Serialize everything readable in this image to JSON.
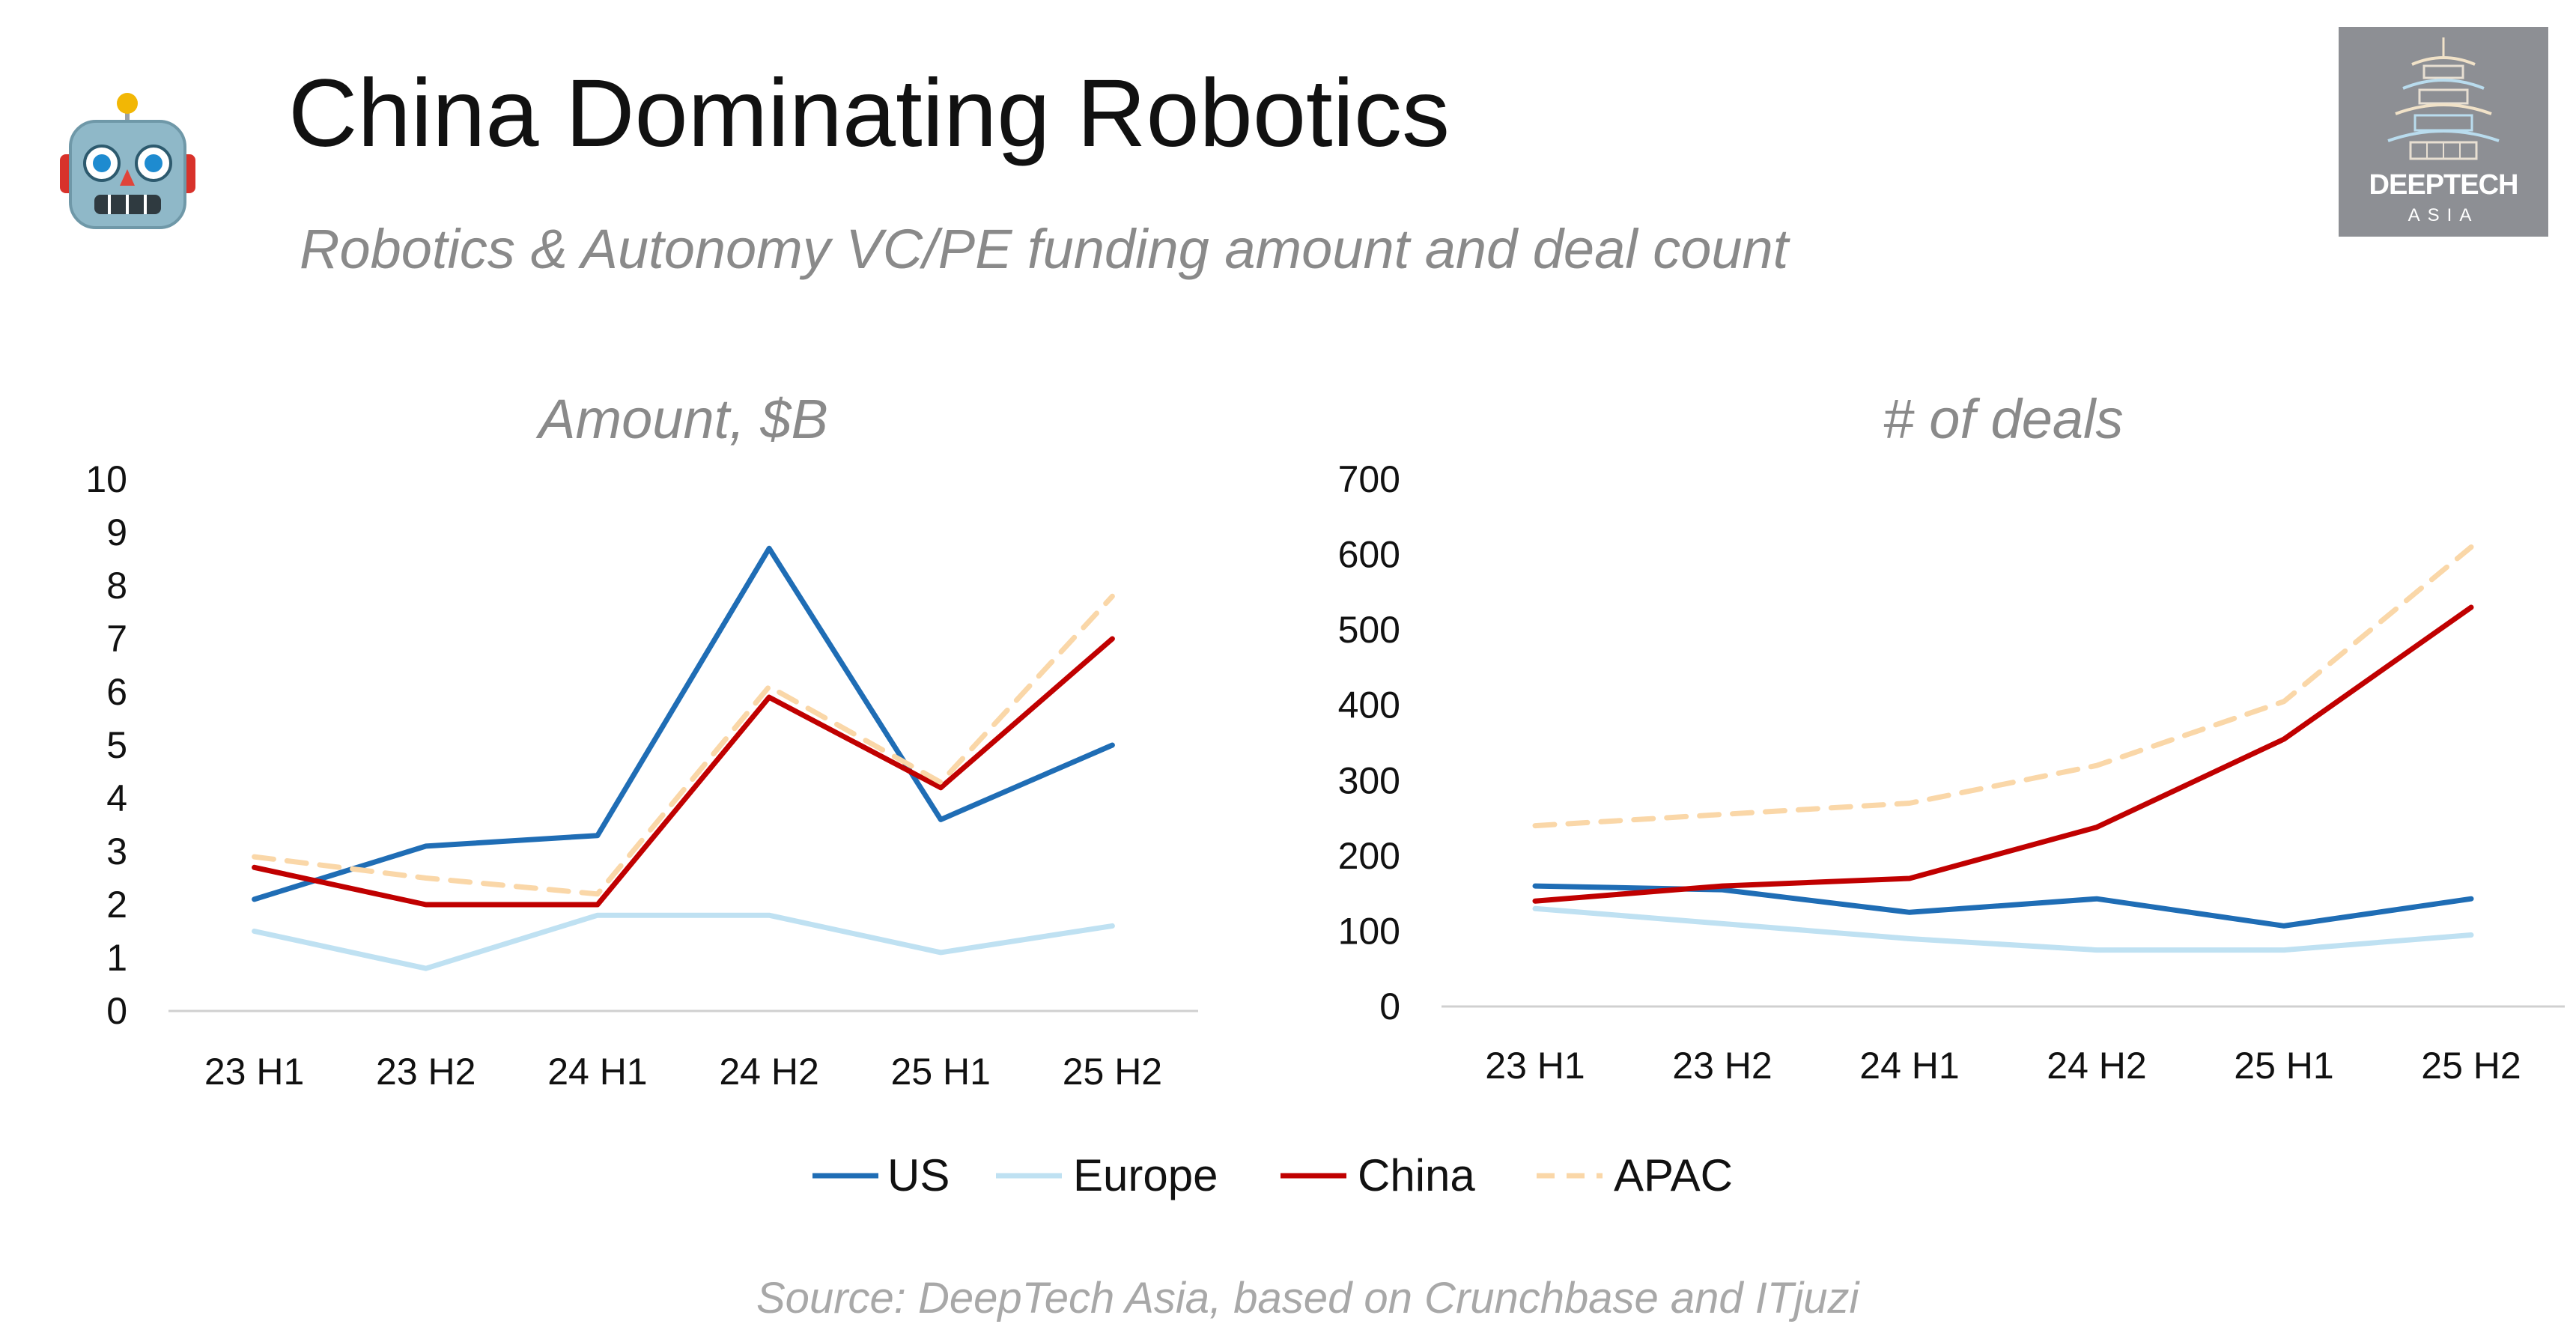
{
  "title": "China Dominating Robotics",
  "subtitle": "Robotics & Autonomy VC/PE funding amount and deal count",
  "source": "Source: DeepTech Asia, based on Crunchbase and ITjuzi",
  "logo": {
    "name": "DEEPTECH",
    "sub": "ASIA"
  },
  "icons": {
    "robot": "robot-face-icon",
    "logo": "pagoda-icon"
  },
  "legend_position": "bottom",
  "chart_data": [
    {
      "type": "line",
      "title": "Amount, $B",
      "categories": [
        "23 H1",
        "23 H2",
        "24 H1",
        "24 H2",
        "25 H1",
        "25 H2"
      ],
      "ylim": [
        0,
        10
      ],
      "yticks": [
        "0",
        "1",
        "2",
        "3",
        "4",
        "5",
        "6",
        "7",
        "8",
        "9",
        "10"
      ],
      "grid": false,
      "series": [
        {
          "name": "US",
          "color": "#1f6db5",
          "dashed": false,
          "values": [
            2.1,
            3.1,
            3.3,
            8.7,
            3.6,
            5.0
          ]
        },
        {
          "name": "Europe",
          "color": "#bfe1f2",
          "dashed": false,
          "values": [
            1.5,
            0.8,
            1.8,
            1.8,
            1.1,
            1.6
          ]
        },
        {
          "name": "China",
          "color": "#c00000",
          "dashed": false,
          "values": [
            2.7,
            2.0,
            2.0,
            5.9,
            4.2,
            7.0
          ]
        },
        {
          "name": "APAC",
          "color": "#fad7a8",
          "dashed": true,
          "values": [
            2.9,
            2.5,
            2.2,
            6.1,
            4.3,
            7.8
          ]
        }
      ]
    },
    {
      "type": "line",
      "title": "# of deals",
      "categories": [
        "23 H1",
        "23 H2",
        "24 H1",
        "24 H2",
        "25 H1",
        "25 H2"
      ],
      "ylim": [
        0,
        700
      ],
      "yticks": [
        "0",
        "100",
        "200",
        "300",
        "400",
        "500",
        "600",
        "700"
      ],
      "grid": false,
      "series": [
        {
          "name": "US",
          "color": "#1f6db5",
          "dashed": false,
          "values": [
            160,
            155,
            125,
            143,
            107,
            143
          ]
        },
        {
          "name": "Europe",
          "color": "#bfe1f2",
          "dashed": false,
          "values": [
            130,
            110,
            90,
            75,
            75,
            95
          ]
        },
        {
          "name": "China",
          "color": "#c00000",
          "dashed": false,
          "values": [
            140,
            160,
            170,
            238,
            355,
            530
          ]
        },
        {
          "name": "APAC",
          "color": "#fad7a8",
          "dashed": true,
          "values": [
            240,
            255,
            270,
            320,
            405,
            610
          ]
        }
      ]
    }
  ]
}
